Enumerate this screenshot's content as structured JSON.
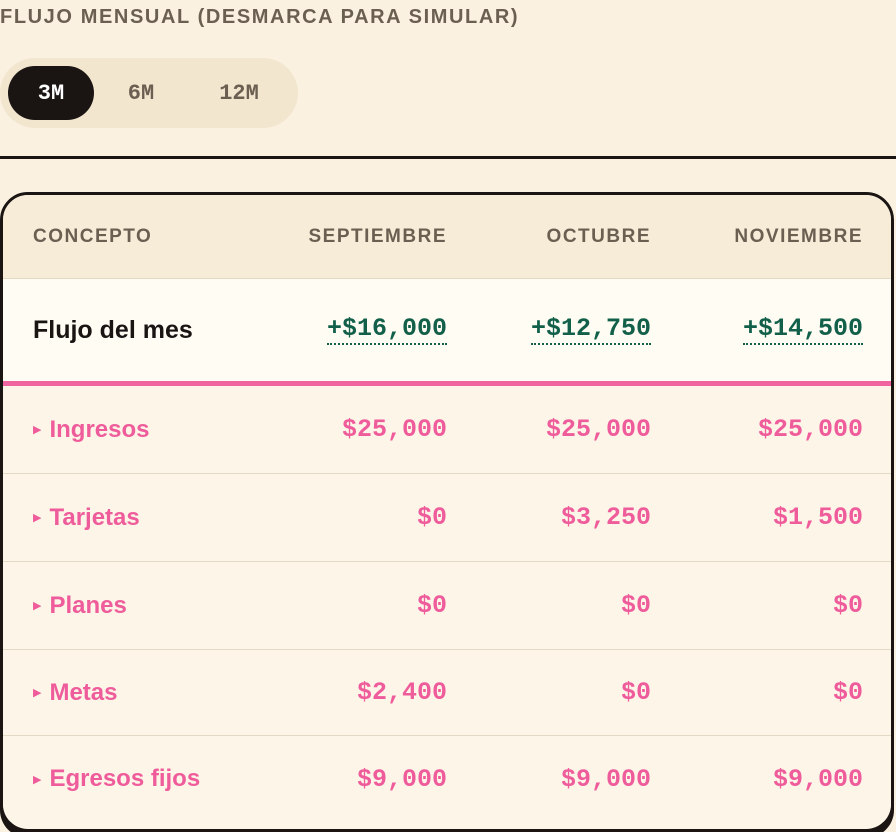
{
  "section": {
    "title": "FLUJO MENSUAL (DESMARCA PARA SIMULAR)"
  },
  "range": {
    "options": [
      "3M",
      "6M",
      "12M"
    ],
    "selected": "3M"
  },
  "table": {
    "headers": [
      "CONCEPTO",
      "SEPTIEMBRE",
      "OCTUBRE",
      "NOVIEMBRE"
    ],
    "flow": {
      "label": "Flujo del mes",
      "values": [
        "+$16,000",
        "+$12,750",
        "+$14,500"
      ]
    },
    "rows": [
      {
        "label": "Ingresos",
        "values": [
          "$25,000",
          "$25,000",
          "$25,000"
        ]
      },
      {
        "label": "Tarjetas",
        "values": [
          "$0",
          "$3,250",
          "$1,500"
        ]
      },
      {
        "label": "Planes",
        "values": [
          "$0",
          "$0",
          "$0"
        ]
      },
      {
        "label": "Metas",
        "values": [
          "$2,400",
          "$0",
          "$0"
        ]
      },
      {
        "label": "Egresos fijos",
        "values": [
          "$9,000",
          "$9,000",
          "$9,000"
        ]
      }
    ]
  },
  "colors": {
    "accent": "#ef5c9b",
    "positive": "#12604a",
    "ink": "#1a1412",
    "background": "#faf1e1"
  },
  "icons": {
    "row_expand": "triangle-right-icon"
  }
}
